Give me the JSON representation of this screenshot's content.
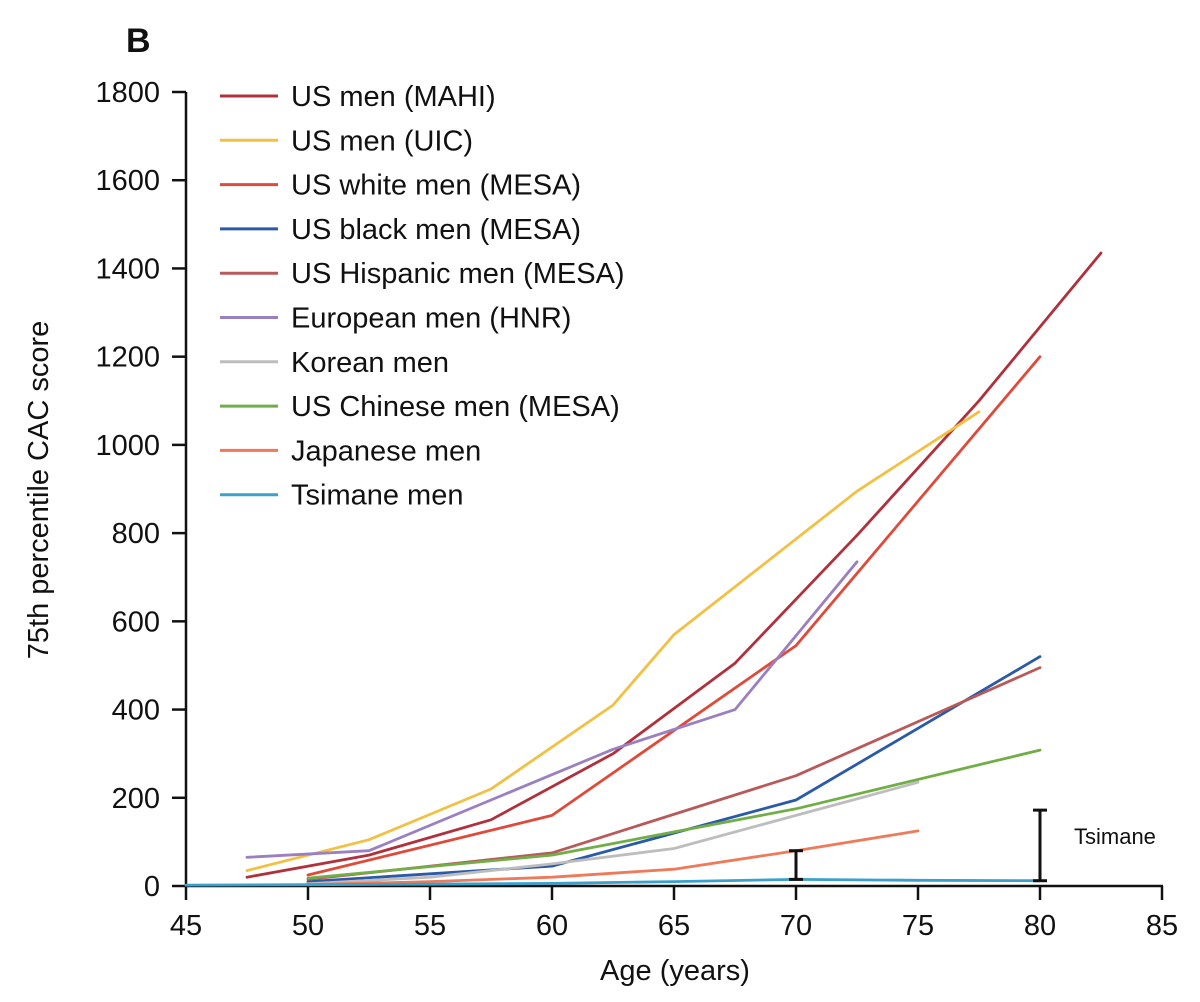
{
  "panel_label": "B",
  "chart_data": {
    "type": "line",
    "xlabel": "Age (years)",
    "ylabel": "75th percentile CAC score",
    "xlim": [
      45,
      85
    ],
    "ylim": [
      0,
      1800
    ],
    "xticks": [
      45,
      50,
      55,
      60,
      65,
      70,
      75,
      80,
      85
    ],
    "yticks": [
      0,
      200,
      400,
      600,
      800,
      1000,
      1200,
      1400,
      1600,
      1800
    ],
    "grid": false,
    "legend_position": "top-left",
    "series": [
      {
        "name": "US men (MAHI)",
        "color": "#b0303c",
        "x": [
          47.5,
          52.5,
          57.5,
          62.5,
          67.5,
          72.5,
          77.5,
          82.5
        ],
        "y": [
          20,
          70,
          150,
          300,
          505,
          795,
          1100,
          1435
        ]
      },
      {
        "name": "US men (UIC)",
        "color": "#f2c043",
        "x": [
          47.5,
          52.5,
          57.5,
          62.5,
          65,
          72.5,
          77.5
        ],
        "y": [
          35,
          105,
          220,
          410,
          570,
          895,
          1075
        ]
      },
      {
        "name": "US white men (MESA)",
        "color": "#e04a3a",
        "x": [
          50,
          60,
          70,
          80
        ],
        "y": [
          25,
          160,
          545,
          1200
        ]
      },
      {
        "name": "US black men (MESA)",
        "color": "#2a5aa8",
        "x": [
          50,
          60,
          70,
          80
        ],
        "y": [
          10,
          45,
          195,
          520
        ]
      },
      {
        "name": "US Hispanic men (MESA)",
        "color": "#b85a5a",
        "x": [
          50,
          60,
          70,
          80
        ],
        "y": [
          15,
          75,
          250,
          495
        ]
      },
      {
        "name": "European men (HNR)",
        "color": "#9a80c0",
        "x": [
          47.5,
          52.5,
          57.5,
          62.5,
          67.5,
          72.5
        ],
        "y": [
          65,
          80,
          195,
          310,
          400,
          735
        ]
      },
      {
        "name": "Korean men",
        "color": "#bdbdbd",
        "x": [
          50,
          55,
          60,
          65,
          70,
          75
        ],
        "y": [
          5,
          20,
          50,
          85,
          160,
          235
        ]
      },
      {
        "name": "US Chinese men (MESA)",
        "color": "#72ae48",
        "x": [
          50,
          60,
          70,
          80
        ],
        "y": [
          18,
          70,
          175,
          308
        ]
      },
      {
        "name": "Japanese men",
        "color": "#ee7a5a",
        "x": [
          50,
          55,
          60,
          65,
          70,
          75
        ],
        "y": [
          3,
          10,
          20,
          38,
          80,
          125
        ]
      },
      {
        "name": "Tsimane men",
        "color": "#3aa0cc",
        "x": [
          45,
          50,
          55,
          60,
          65,
          70,
          75,
          80
        ],
        "y": [
          2,
          3,
          4,
          6,
          10,
          15,
          13,
          12
        ]
      }
    ],
    "error_bars": [
      {
        "x": 70,
        "low": 15,
        "high": 80
      },
      {
        "x": 80,
        "low": 12,
        "high": 172
      }
    ],
    "annotations": [
      {
        "text": "Tsimane",
        "x": 80,
        "y": 95
      }
    ]
  }
}
